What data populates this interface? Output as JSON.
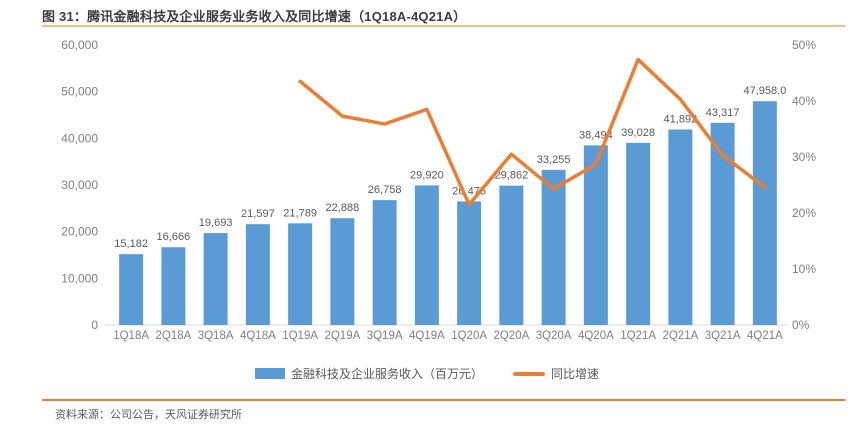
{
  "figure": {
    "title": "图 31：腾讯金融科技及企业服务业务收入及同比增速（1Q18A-4Q21A）",
    "source": "资料来源：公司公告，天风证券研究所"
  },
  "colors": {
    "bar": "#5B9BD5",
    "line": "#ED7D31",
    "title_rule": "#F4BE8B",
    "footer_rule": "#ED7D31",
    "axis_text": "#7F7F7F",
    "value_label": "#595959",
    "legend_text": "#595959",
    "title_text": "#3C3C3C",
    "baseline": "#D9D9D9"
  },
  "chart_data": {
    "type": "bar",
    "combo": "bar+line dual-axis",
    "title": "腾讯金融科技及企业服务业务收入及同比增速（1Q18A-4Q21A）",
    "categories": [
      "1Q18A",
      "2Q18A",
      "3Q18A",
      "4Q18A",
      "1Q19A",
      "2Q19A",
      "3Q19A",
      "4Q19A",
      "1Q20A",
      "2Q20A",
      "3Q20A",
      "4Q20A",
      "1Q21A",
      "2Q21A",
      "3Q21A",
      "4Q21A"
    ],
    "series": [
      {
        "name": "金融科技及企业服务收入（百万元）",
        "type": "bar",
        "axis": "left",
        "values": [
          15182,
          16666,
          19693,
          21597,
          21789,
          22888,
          26758,
          29920,
          26475,
          29862,
          33255,
          38494,
          39028,
          41892,
          43317,
          47958.0
        ],
        "labels": [
          "15,182",
          "16,666",
          "19,693",
          "21,597",
          "21,789",
          "22,888",
          "26,758",
          "29,920",
          "26,475",
          "29,862",
          "33,255",
          "38,494",
          "39,028",
          "41,892",
          "43,317",
          "47,958.0"
        ]
      },
      {
        "name": "同比增速",
        "type": "line",
        "axis": "right",
        "values": [
          null,
          null,
          null,
          null,
          43.5,
          37.3,
          35.9,
          38.5,
          21.5,
          30.5,
          24.3,
          28.7,
          47.4,
          40.3,
          30.3,
          24.6
        ]
      }
    ],
    "left_axis": {
      "min": 0,
      "max": 60000,
      "step": 10000,
      "tick_labels": [
        "0",
        "10,000",
        "20,000",
        "30,000",
        "40,000",
        "50,000",
        "60,000"
      ]
    },
    "right_axis": {
      "min": 0,
      "max": 50,
      "step": 10,
      "unit": "%",
      "tick_labels": [
        "0%",
        "10%",
        "20%",
        "30%",
        "40%",
        "50%"
      ]
    },
    "grid": false,
    "legend_position": "bottom"
  }
}
